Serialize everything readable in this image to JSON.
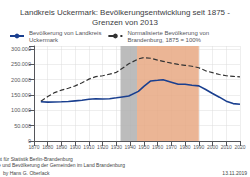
{
  "chart_data": {
    "type": "line",
    "title": "Landkreis Uckermark: Bevölkerungsentwicklung seit 1875 -\nGrenzen von 2013",
    "annotations": [
      "Quellen: Amt für Statistik Berlin-Brandenburg\nHistorische Gemeindeverzeichnisse und Bevölkerung der Gemeinden im Land Brandenburg",
      "by Hans G. Oberlack",
      "13.11.2019"
    ],
    "series": [
      {
        "name": "Normalisierte Bevölkerung von\nBrandenburg, 1875 = 100%",
        "color": "#333333",
        "line_style": "dashed",
        "x": [
          1875,
          1880,
          1885,
          1890,
          1895,
          1900,
          1905,
          1910,
          1915,
          1920,
          1925,
          1930,
          1933,
          1939,
          1946,
          1950,
          1955,
          1960,
          1964,
          1970,
          1975,
          1980,
          1985,
          1990,
          1995,
          2000,
          2005,
          2010,
          2015,
          2020
        ],
        "values": [
          130000,
          145000,
          158000,
          166000,
          172000,
          180000,
          190000,
          202000,
          210000,
          213000,
          218000,
          224000,
          233000,
          252000,
          268000,
          272000,
          270000,
          264000,
          260000,
          254000,
          250000,
          247000,
          244000,
          239000,
          229000,
          223000,
          217000,
          213000,
          211000,
          209000
        ]
      },
      {
        "name": "Bevölkerung von Landkreis\nUckermark",
        "color": "#1a3f8f",
        "line_style": "solid",
        "x": [
          1875,
          1880,
          1885,
          1890,
          1895,
          1900,
          1905,
          1910,
          1915,
          1920,
          1925,
          1930,
          1933,
          1939,
          1946,
          1950,
          1955,
          1960,
          1964,
          1970,
          1975,
          1980,
          1985,
          1990,
          1995,
          2000,
          2005,
          2010,
          2015,
          2020
        ],
        "values": [
          128000,
          127000,
          127500,
          128000,
          129000,
          131000,
          133000,
          136000,
          138000,
          137000,
          138000,
          141000,
          143000,
          147000,
          162000,
          178000,
          196000,
          198000,
          200000,
          192000,
          185000,
          185000,
          182000,
          180000,
          168000,
          155000,
          143000,
          130000,
          122000,
          120000
        ]
      }
    ],
    "shaded_spans": [
      {
        "from": 1933,
        "to": 1945,
        "color": "#b0b0b0"
      },
      {
        "from": 1945,
        "to": 1990,
        "color": "#e8a882"
      }
    ],
    "xlim": [
      1870,
      2020
    ],
    "xticks": [
      1870,
      1880,
      1890,
      1900,
      1910,
      1920,
      1930,
      1940,
      1950,
      1960,
      1970,
      1980,
      1990,
      2000,
      2010,
      2020
    ],
    "ylim": [
      0,
      310000
    ],
    "yticks": [
      0,
      {
        "value": 50000,
        "label": "50.000"
      },
      {
        "value": 100000,
        "label": "100.000"
      },
      {
        "value": 150000,
        "label": "150.000"
      },
      {
        "value": 200000,
        "label": "200.000"
      },
      {
        "value": 250000,
        "label": "250.000"
      },
      {
        "value": 300000,
        "label": "300.000"
      }
    ],
    "grid": true,
    "legend": "upper left"
  }
}
